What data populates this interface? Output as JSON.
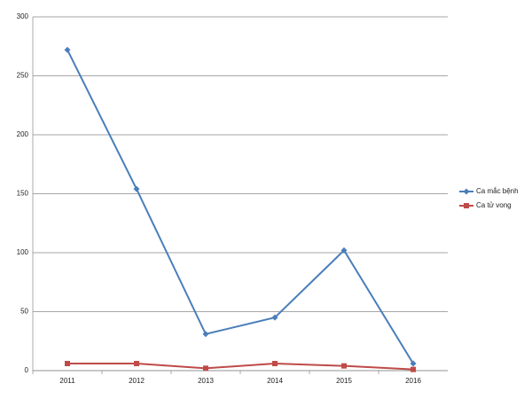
{
  "chart_data": {
    "type": "line",
    "categories": [
      "2011",
      "2012",
      "2013",
      "2014",
      "2015",
      "2016"
    ],
    "series": [
      {
        "name": "Ca mắc bệnh",
        "color": "#4a7ebb",
        "marker": "diamond",
        "values": [
          272,
          154,
          31,
          45,
          102,
          6
        ]
      },
      {
        "name": "Ca tử vong",
        "color": "#be4b48",
        "marker": "square",
        "values": [
          6,
          6,
          2,
          6,
          4,
          1
        ]
      }
    ],
    "ylim": [
      0,
      300
    ],
    "yticks": [
      0,
      50,
      100,
      150,
      200,
      250,
      300
    ],
    "grid": true,
    "legend": "right"
  }
}
